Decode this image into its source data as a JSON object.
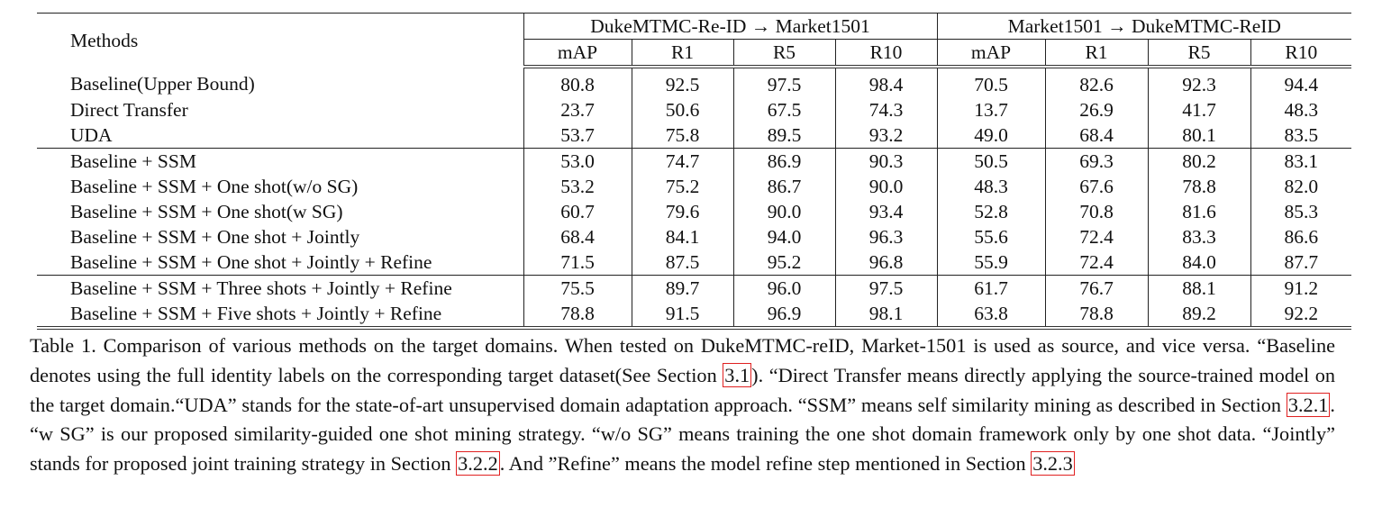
{
  "table": {
    "methods_header": "Methods",
    "groups": [
      "DukeMTMC-Re-ID → Market1501",
      "Market1501 → DukeMTMC-ReID"
    ],
    "metrics": [
      "mAP",
      "R1",
      "R5",
      "R10",
      "mAP",
      "R1",
      "R5",
      "R10"
    ],
    "rows": [
      {
        "method": "Baseline(Upper Bound)",
        "values": [
          "80.8",
          "92.5",
          "97.5",
          "98.4",
          "70.5",
          "82.6",
          "92.3",
          "94.4"
        ]
      },
      {
        "method": "Direct Transfer",
        "values": [
          "23.7",
          "50.6",
          "67.5",
          "74.3",
          "13.7",
          "26.9",
          "41.7",
          "48.3"
        ]
      },
      {
        "method": "UDA",
        "values": [
          "53.7",
          "75.8",
          "89.5",
          "93.2",
          "49.0",
          "68.4",
          "80.1",
          "83.5"
        ]
      },
      {
        "method": "Baseline + SSM",
        "values": [
          "53.0",
          "74.7",
          "86.9",
          "90.3",
          "50.5",
          "69.3",
          "80.2",
          "83.1"
        ]
      },
      {
        "method": "Baseline + SSM + One shot(w/o SG)",
        "values": [
          "53.2",
          "75.2",
          "86.7",
          "90.0",
          "48.3",
          "67.6",
          "78.8",
          "82.0"
        ]
      },
      {
        "method": "Baseline + SSM + One shot(w SG)",
        "values": [
          "60.7",
          "79.6",
          "90.0",
          "93.4",
          "52.8",
          "70.8",
          "81.6",
          "85.3"
        ]
      },
      {
        "method": "Baseline + SSM + One shot + Jointly",
        "values": [
          "68.4",
          "84.1",
          "94.0",
          "96.3",
          "55.6",
          "72.4",
          "83.3",
          "86.6"
        ]
      },
      {
        "method": "Baseline + SSM + One shot + Jointly + Refine",
        "values": [
          "71.5",
          "87.5",
          "95.2",
          "96.8",
          "55.9",
          "72.4",
          "84.0",
          "87.7"
        ]
      },
      {
        "method": "Baseline + SSM + Three shots + Jointly + Refine",
        "values": [
          "75.5",
          "89.7",
          "96.0",
          "97.5",
          "61.7",
          "76.7",
          "88.1",
          "91.2"
        ]
      },
      {
        "method": "Baseline + SSM + Five shots + Jointly + Refine",
        "values": [
          "78.8",
          "91.5",
          "96.9",
          "98.1",
          "63.8",
          "78.8",
          "89.2",
          "92.2"
        ]
      }
    ]
  },
  "caption": {
    "t1": "Table 1. Comparison of various methods on the target domains.  When tested on DukeMTMC-reID, Market-1501 is used as source, and vice versa.  “Baseline denotes using the full identity labels on the corresponding target dataset(See Section ",
    "ref1": "3.1",
    "t2": "). “Direct Transfer means directly applying the source-trained model on the target domain.“UDA” stands for the state-of-art unsupervised domain adaptation approach.  “SSM” means self similarity mining as described in Section ",
    "ref2": "3.2.1",
    "t3": ".  “w SG” is our proposed similarity-guided one shot mining strategy.  “w/o SG” means training the one shot domain framework only by one shot data.  “Jointly” stands for proposed joint training strategy in Section ",
    "ref3": "3.2.2",
    "t4": ". And ”Refine” means the model refine step mentioned in Section ",
    "ref4": "3.2.3"
  },
  "colors": {
    "reference_box": "#e02020",
    "text": "#111111"
  }
}
